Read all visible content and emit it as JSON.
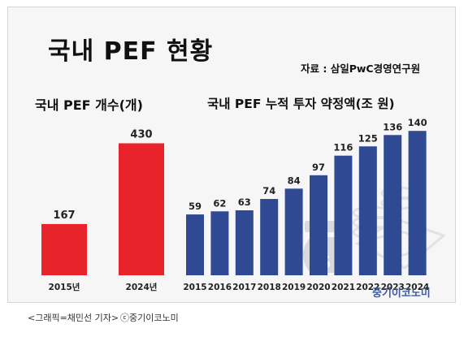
{
  "title": "국내 PEF 현황",
  "source": "자료 : 삼일PwC경영연구원",
  "brand": "중기이코노미",
  "caption": "<그래픽=채민선 기자>",
  "copyright": "ⓒ중기이코노미",
  "colors": {
    "red": "#e8232a",
    "blue": "#2f4a93"
  },
  "chart_data": [
    {
      "type": "bar",
      "title": "국내 PEF 개수(개)",
      "categories": [
        "2015년",
        "2024년"
      ],
      "values": [
        167,
        430
      ],
      "color": "#e8232a"
    },
    {
      "type": "bar",
      "title": "국내 PEF 누적 투자 약정액(조 원)",
      "categories": [
        "2015",
        "2016",
        "2017",
        "2018",
        "2019",
        "2020",
        "2021",
        "2022",
        "2023",
        "2024"
      ],
      "values": [
        59,
        62,
        63,
        74,
        84,
        97,
        116,
        125,
        136,
        140
      ],
      "color": "#2f4a93"
    }
  ]
}
